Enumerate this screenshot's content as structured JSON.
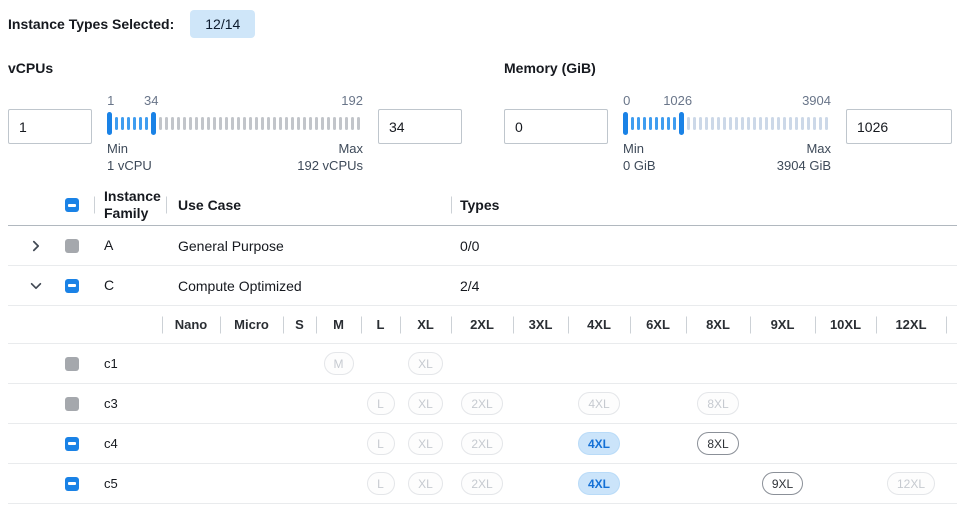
{
  "header": {
    "label": "Instance Types Selected:",
    "badge": "12/14"
  },
  "filters": {
    "vcpus": {
      "title": "vCPUs",
      "low_value": "1",
      "high_value": "34",
      "scale": {
        "low": "1",
        "high": "34",
        "max": "192"
      },
      "range": {
        "min": 1,
        "max": 192,
        "low": 1,
        "high": 34
      },
      "min_label": "Min",
      "min_detail": "1 vCPU",
      "max_label": "Max",
      "max_detail": "192 vCPUs"
    },
    "memory": {
      "title": "Memory (GiB)",
      "low_value": "0",
      "high_value": "1026",
      "scale": {
        "low": "0",
        "high": "1026",
        "max": "3904"
      },
      "range": {
        "min": 0,
        "max": 3904,
        "low": 0,
        "high": 1026
      },
      "min_label": "Min",
      "min_detail": "0 GiB",
      "max_label": "Max",
      "max_detail": "3904 GiB"
    }
  },
  "table": {
    "columns": {
      "family": "Instance Family",
      "use_case": "Use Case",
      "types": "Types"
    },
    "sizes": [
      "Nano",
      "Micro",
      "S",
      "M",
      "L",
      "XL",
      "2XL",
      "3XL",
      "4XL",
      "6XL",
      "8XL",
      "9XL",
      "10XL",
      "12XL"
    ],
    "header_checkbox": "indeterminate",
    "rows": [
      {
        "type": "family",
        "chevron": "right",
        "checkbox": "disabled",
        "name": "A",
        "use_case": "General Purpose",
        "types": "0/0"
      },
      {
        "type": "family",
        "chevron": "down",
        "checkbox": "indeterminate",
        "name": "C",
        "use_case": "Compute Optimized",
        "types": "2/4"
      },
      {
        "type": "sizes_header"
      },
      {
        "type": "instance",
        "checkbox": "disabled",
        "name": "c1",
        "pills": {
          "M": "muted",
          "XL": "muted"
        }
      },
      {
        "type": "instance",
        "checkbox": "disabled",
        "name": "c3",
        "pills": {
          "L": "muted",
          "XL": "muted",
          "2XL": "muted",
          "4XL": "muted",
          "8XL": "muted"
        }
      },
      {
        "type": "instance",
        "checkbox": "indeterminate",
        "name": "c4",
        "pills": {
          "L": "muted",
          "XL": "muted",
          "2XL": "muted",
          "4XL": "selected",
          "8XL": "outlined"
        }
      },
      {
        "type": "instance",
        "checkbox": "indeterminate",
        "name": "c5",
        "pills": {
          "L": "muted",
          "XL": "muted",
          "2XL": "muted",
          "4XL": "selected",
          "9XL": "outlined",
          "12XL": "muted"
        }
      }
    ]
  },
  "colors": {
    "accent_blue": "#1a82e6",
    "selected_pill_bg": "#cbe4fa",
    "selected_pill_text": "#1470d6",
    "badge_bg": "#cfe6f9"
  }
}
